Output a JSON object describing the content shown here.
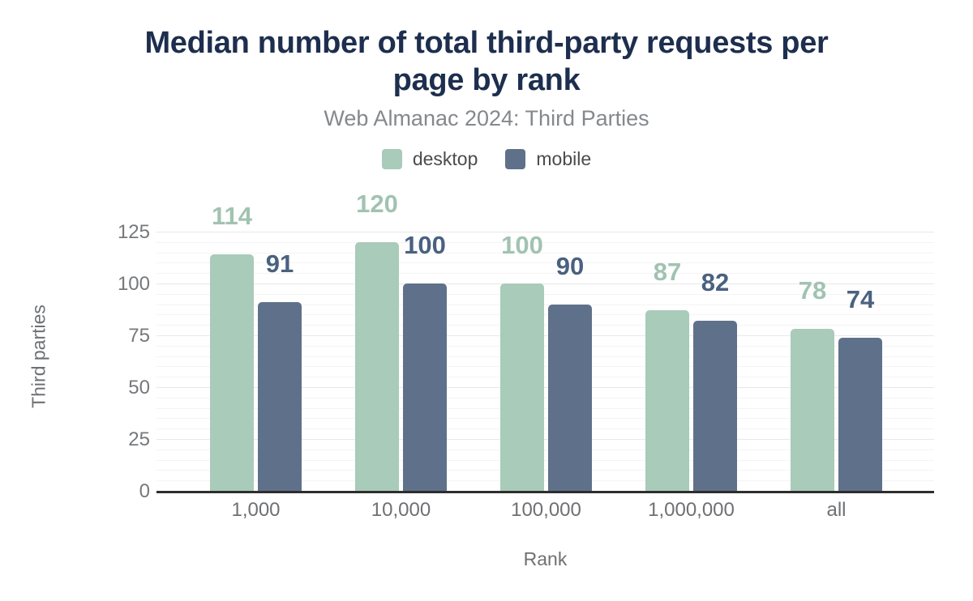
{
  "header": {
    "title_line1": "Median number of total third-party requests per",
    "title_line2": "page by rank",
    "subtitle": "Web Almanac 2024: Third Parties"
  },
  "chart_data": {
    "type": "bar",
    "title": "Median number of total third-party requests per page by rank",
    "subtitle": "Web Almanac 2024: Third Parties",
    "categories": [
      "1,000",
      "10,000",
      "100,000",
      "1,000,000",
      "all"
    ],
    "series": [
      {
        "name": "desktop",
        "values": [
          114,
          120,
          100,
          87,
          78
        ],
        "color": "#a9cbb9",
        "label_color": "#a1c3b1"
      },
      {
        "name": "mobile",
        "values": [
          91,
          100,
          90,
          82,
          74
        ],
        "color": "#5f718a",
        "label_color": "#4a6180"
      }
    ],
    "xlabel": "Rank",
    "ylabel": "Third parties",
    "yticks": [
      0,
      25,
      50,
      75,
      100,
      125
    ],
    "ylim": [
      0,
      137
    ],
    "grid": "horizontal; minor every 5, major every 25",
    "legend_position": "top-center",
    "data_labels": "above bars"
  },
  "colors": {
    "background": "#ffffff",
    "title": "#1d2e4e",
    "subtitle": "#85888c",
    "axis_text": "#76787b",
    "axis_title_text": "#6e7073",
    "legend_text": "#4a4b4d",
    "axis_line": "#2e2e2e",
    "grid_major": "#e8e8ea",
    "grid_minor": "#f4f4f6"
  }
}
